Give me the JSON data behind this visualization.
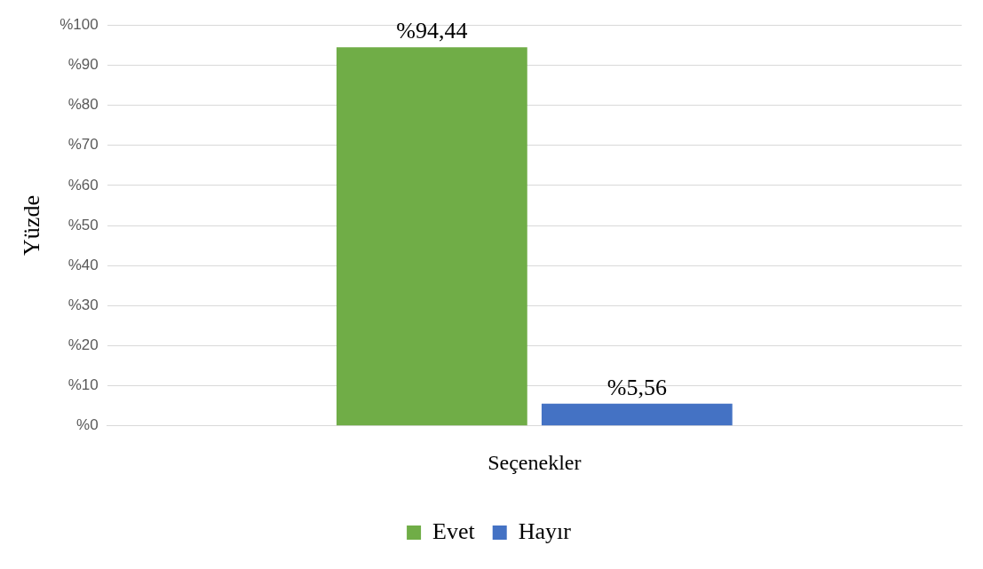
{
  "chart_data": {
    "type": "bar",
    "categories": [
      null
    ],
    "xlabel": "Seçenekler",
    "ylabel": "Yüzde",
    "series": [
      {
        "name": "Evet",
        "color": "#70ad47",
        "values": [
          94.44
        ],
        "value_labels": [
          "%94,44"
        ]
      },
      {
        "name": "Hayır",
        "color": "#4472c4",
        "values": [
          5.56
        ],
        "value_labels": [
          "%5,56"
        ]
      }
    ],
    "ylim": [
      0,
      100
    ],
    "yticks": [
      {
        "value": 0,
        "label": "%0"
      },
      {
        "value": 10,
        "label": "%10"
      },
      {
        "value": 20,
        "label": "%20"
      },
      {
        "value": 30,
        "label": "%30"
      },
      {
        "value": 40,
        "label": "%40"
      },
      {
        "value": 50,
        "label": "%50"
      },
      {
        "value": 60,
        "label": "%60"
      },
      {
        "value": 70,
        "label": "%70"
      },
      {
        "value": 80,
        "label": "%80"
      },
      {
        "value": 90,
        "label": "%90"
      },
      {
        "value": 100,
        "label": "%100"
      }
    ],
    "grid": "y",
    "legend": "bottom"
  }
}
